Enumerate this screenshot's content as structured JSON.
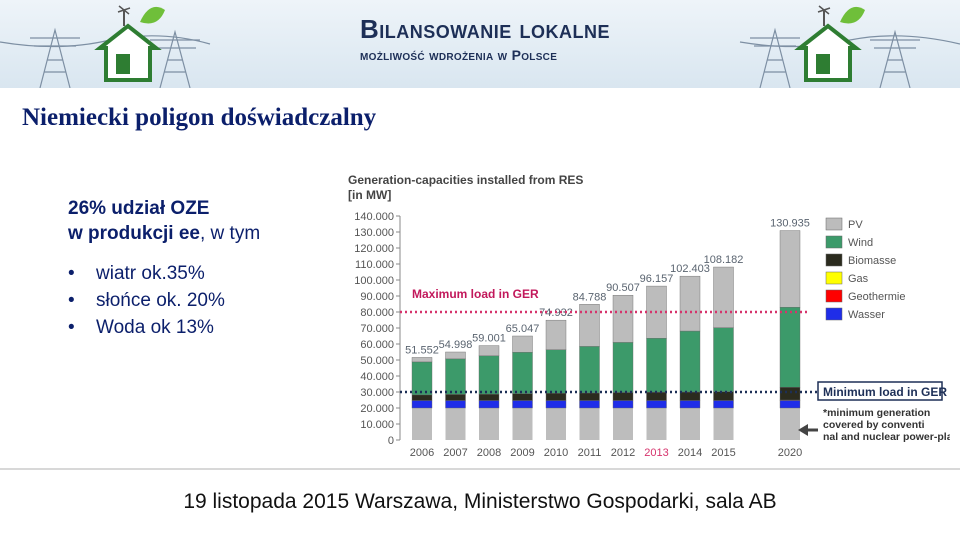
{
  "header": {
    "title": "Bilansowanie lokalne",
    "subtitle": "możliwość wdrożenia w Polsce",
    "logo_icon": "green-house-logo-icon"
  },
  "slide": {
    "title": "Niemiecki poligon doświadczalny",
    "intro_bold_1": "26% udział OZE",
    "intro_bold_2": "w produkcji ee",
    "intro_rest": ", w tym",
    "bullets": [
      "wiatr ok.35%",
      "słońce ok. 20%",
      "Woda ok 13%"
    ]
  },
  "colors": {
    "title": "#0b1f6b",
    "pv": "#bcbcbc",
    "wind": "#3c9a6a",
    "biomasse": "#2b2b1e",
    "gas": "#ffff00",
    "geothermie": "#ff0000",
    "wasser": "#1f2de8",
    "base": "#bdbdbd",
    "max_line": "#d6336c",
    "min_line": "#1d2f57"
  },
  "chart_data": {
    "type": "bar",
    "title": "Generation-capacities installed from RES",
    "ylabel": "[in MW]",
    "ylim": [
      0,
      140000
    ],
    "y_ticks": [
      "0",
      "10.000",
      "20.000",
      "30.000",
      "40.000",
      "50.000",
      "60.000",
      "70.000",
      "80.000",
      "90.000",
      "100.000",
      "110.000",
      "120.000",
      "130.000",
      "140.000"
    ],
    "categories": [
      "2006",
      "2007",
      "2008",
      "2009",
      "2010",
      "2011",
      "2012",
      "2013",
      "2014",
      "2015",
      "2020"
    ],
    "highlight_category": "2013",
    "totals": [
      51552,
      54998,
      59001,
      65047,
      74932,
      84788,
      90507,
      96157,
      102403,
      108182,
      130935
    ],
    "total_labels": [
      "51.552",
      "54.998",
      "59.001",
      "65.047",
      "74.932",
      "84.788",
      "90.507",
      "96.157",
      "102.403",
      "108.182",
      "130.935"
    ],
    "series": [
      {
        "name": "Wasser",
        "values": [
          4700,
          4700,
          4700,
          4700,
          4700,
          4700,
          4700,
          4700,
          4700,
          4700,
          4700
        ]
      },
      {
        "name": "Geothermie",
        "values": [
          0,
          0,
          0,
          0,
          0,
          0,
          0,
          0,
          0,
          0,
          300
        ]
      },
      {
        "name": "Gas",
        "values": [
          0,
          0,
          0,
          0,
          0,
          0,
          0,
          0,
          0,
          0,
          0
        ]
      },
      {
        "name": "Biomasse",
        "values": [
          3500,
          3800,
          4000,
          4300,
          4500,
          4700,
          5000,
          5200,
          5300,
          5500,
          8000
        ]
      },
      {
        "name": "Wind",
        "values": [
          20600,
          22200,
          23900,
          25800,
          27200,
          29100,
          31300,
          33700,
          38100,
          40000,
          50000
        ]
      },
      {
        "name": "PV",
        "values": [
          2800,
          4300,
          6400,
          10200,
          18500,
          26300,
          29500,
          32600,
          34300,
          37900,
          47900
        ]
      }
    ],
    "base_label": "*minimum generation covered by conventional and nuclear power-plants",
    "base_value": 20000,
    "max_load": {
      "label": "Maximum load in GER",
      "value": 80000
    },
    "min_load": {
      "label": "Minimum load in GER",
      "value": 30000
    },
    "legend": [
      "PV",
      "Wind",
      "Biomasse",
      "Gas",
      "Geothermie",
      "Wasser"
    ],
    "legend_position": "right"
  },
  "footer": {
    "text": "19 listopada 2015 Warszawa, Ministerstwo Gospodarki, sala AB"
  }
}
